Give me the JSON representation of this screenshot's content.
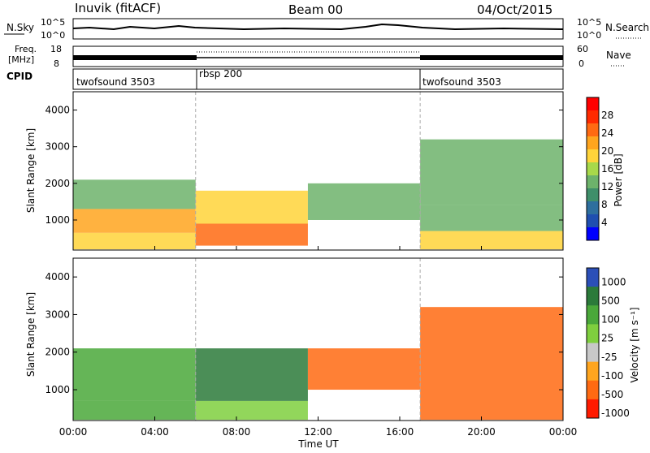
{
  "header": {
    "station": "Inuvik (fitACF)",
    "beam": "Beam 00",
    "date": "04/Oct/2015"
  },
  "top_panels": {
    "nsky_label": "N.Sky",
    "nsky_ticks": [
      "10^5",
      "10^0"
    ],
    "nsearch_label": "N.Search",
    "nsearch_ticks": [
      "10^5",
      "10^0"
    ],
    "freq_label_top": "Freq.",
    "freq_label_bottom": "[MHz]",
    "freq_ticks": [
      "18",
      "8"
    ],
    "nave_label": "Nave",
    "nave_ticks": [
      "60",
      "0"
    ],
    "cpid_label": "CPID",
    "cpid_segments": [
      "twofsound 3503",
      "rbsp 200",
      "twofsound 3503"
    ]
  },
  "chart_data": [
    {
      "type": "heatmap",
      "name": "power",
      "ylabel": "Slant Range [km]",
      "yticks": [
        "4000",
        "3000",
        "2000",
        "1000"
      ],
      "ylim": [
        180,
        4500
      ],
      "colorbar": {
        "label": "Power [dB]",
        "ticks": [
          "28",
          "24",
          "20",
          "16",
          "12",
          "8",
          "4"
        ],
        "range": [
          0,
          32
        ],
        "colors": [
          "#0000ff",
          "#1f4fb0",
          "#2e6f9e",
          "#3f8f6a",
          "#6db36b",
          "#a8d94a",
          "#ffd43a",
          "#ffa51e",
          "#ff6a12",
          "#ff2a00",
          "#ff0000"
        ]
      },
      "regions": [
        {
          "t0": 0.0,
          "t1": 6.0,
          "r0": 200,
          "r1": 650,
          "power": 20
        },
        {
          "t0": 0.0,
          "t1": 6.0,
          "r0": 650,
          "r1": 1300,
          "power": 22
        },
        {
          "t0": 0.0,
          "t1": 6.0,
          "r0": 1300,
          "r1": 2100,
          "power": 12
        },
        {
          "t0": 6.0,
          "t1": 11.5,
          "r0": 300,
          "r1": 900,
          "power": 26
        },
        {
          "t0": 6.0,
          "t1": 11.5,
          "r0": 900,
          "r1": 1800,
          "power": 18
        },
        {
          "t0": 11.5,
          "t1": 17.0,
          "r0": 1000,
          "r1": 2000,
          "power": 12
        },
        {
          "t0": 17.0,
          "t1": 24.0,
          "r0": 200,
          "r1": 700,
          "power": 18
        },
        {
          "t0": 17.0,
          "t1": 24.0,
          "r0": 700,
          "r1": 1400,
          "power": 12
        },
        {
          "t0": 17.0,
          "t1": 24.0,
          "r0": 1400,
          "r1": 3200,
          "power": 12
        }
      ]
    },
    {
      "type": "heatmap",
      "name": "velocity",
      "ylabel": "Slant Range [km]",
      "yticks": [
        "4000",
        "3000",
        "2000",
        "1000"
      ],
      "ylim": [
        180,
        4500
      ],
      "colorbar": {
        "label": "Velocity [m s⁻¹]",
        "ticks": [
          "1000",
          "500",
          "100",
          "25",
          "-25",
          "-100",
          "-500",
          "-1000"
        ],
        "colors": [
          "#2b4fb8",
          "#2b7a3a",
          "#4aa83a",
          "#7fcf3e",
          "#c8c8c8",
          "#ffa51e",
          "#ff6a12",
          "#ff1a00"
        ]
      },
      "regions": [
        {
          "t0": 0.0,
          "t1": 6.0,
          "r0": 200,
          "r1": 700,
          "velocity": 100
        },
        {
          "t0": 0.0,
          "t1": 6.0,
          "r0": 700,
          "r1": 2100,
          "velocity": 200
        },
        {
          "t0": 6.0,
          "t1": 11.5,
          "r0": 700,
          "r1": 2100,
          "velocity": 800
        },
        {
          "t0": 6.0,
          "t1": 11.5,
          "r0": 200,
          "r1": 700,
          "velocity": 50
        },
        {
          "t0": 11.5,
          "t1": 17.0,
          "r0": 1000,
          "r1": 2100,
          "velocity": -150
        },
        {
          "t0": 17.0,
          "t1": 24.0,
          "r0": 200,
          "r1": 3200,
          "velocity": -300
        }
      ]
    }
  ],
  "xaxis": {
    "label": "Time UT",
    "ticks": [
      "00:00",
      "04:00",
      "08:00",
      "12:00",
      "16:00",
      "20:00",
      "00:00"
    ]
  }
}
